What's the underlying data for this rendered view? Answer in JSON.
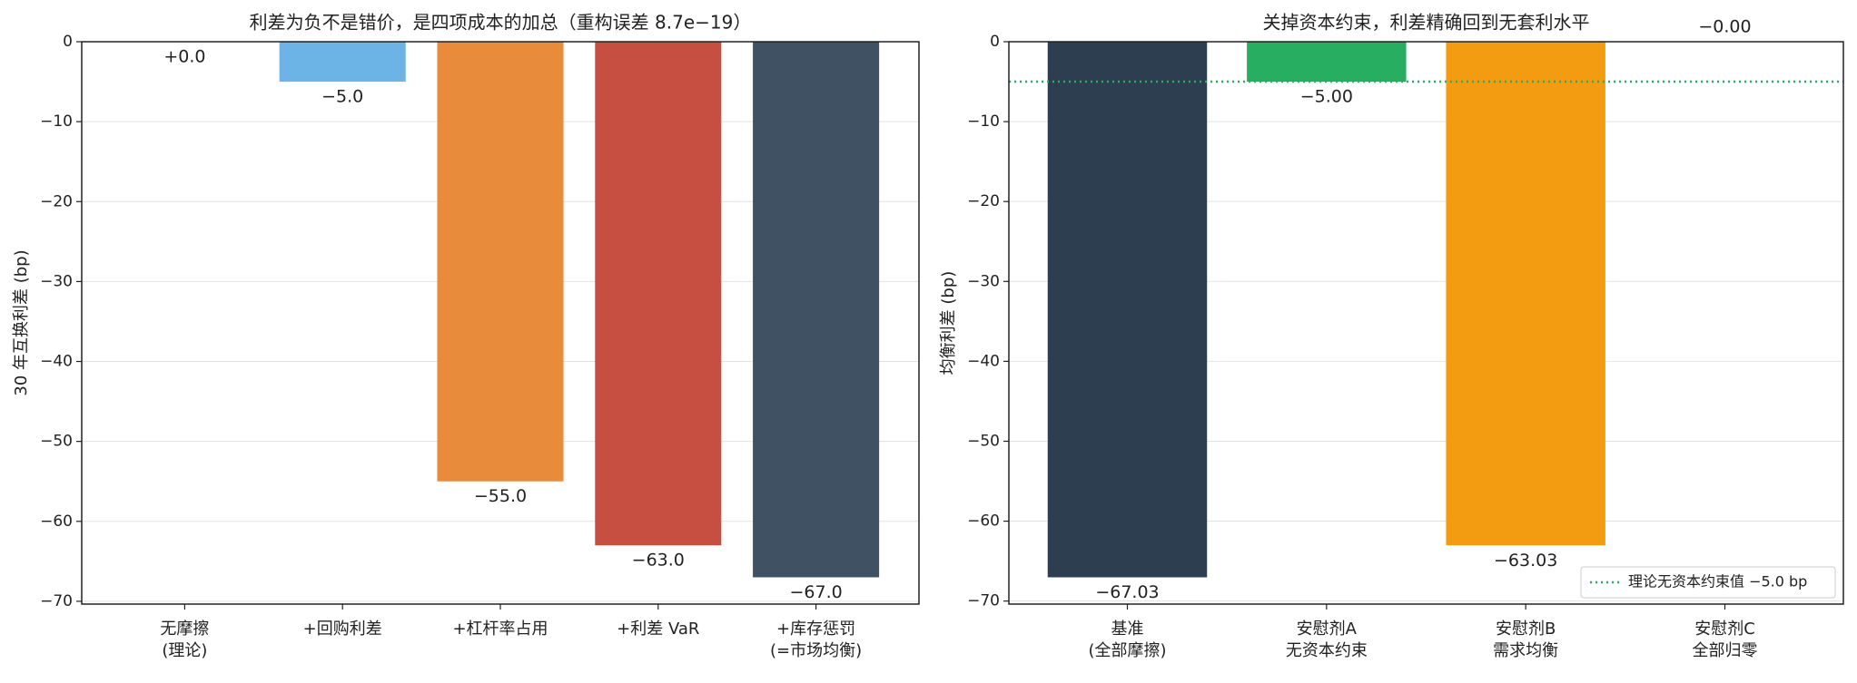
{
  "chart_data": [
    {
      "type": "bar",
      "title": "利差为负不是错价，是四项成本的加总（重构误差 8.7e−19）",
      "ylabel": "30 年互换利差 (bp)",
      "categories": [
        "无摩擦\n(理论)",
        "+回购利差",
        "+杠杆率占用",
        "+利差 VaR",
        "+库存惩罚\n(=市场均衡)"
      ],
      "values": [
        0,
        -5,
        -55,
        -63,
        -67
      ],
      "value_labels": [
        "+0.0",
        "−5.0",
        "−55.0",
        "−63.0",
        "−67.0"
      ],
      "colors": [
        "#95a5a6",
        "#6cb4e6",
        "#e88b3a",
        "#c64f42",
        "#415164"
      ],
      "ylim": [
        -70.35,
        0
      ],
      "yticks": [
        0,
        {
          "value": -10,
          "label": "−10"
        },
        {
          "value": -20,
          "label": "−20"
        },
        {
          "value": -30,
          "label": "−30"
        },
        {
          "value": -40,
          "label": "−40"
        },
        {
          "value": -50,
          "label": "−50"
        },
        {
          "value": -60,
          "label": "−60"
        },
        {
          "value": -70,
          "label": "−70"
        }
      ],
      "grid": true
    },
    {
      "type": "bar",
      "title": "关掉资本约束，利差精确回到无套利水平",
      "ylabel": "均衡利差 (bp)",
      "categories": [
        "基准\n(全部摩擦)",
        "安慰剂A\n无资本约束",
        "安慰剂B\n需求均衡",
        "安慰剂C\n全部归零"
      ],
      "values": [
        -67.03,
        -5.0,
        -63.03,
        -0.0
      ],
      "value_labels": [
        "−67.03",
        "−5.00",
        "−63.03",
        "−0.00"
      ],
      "colors": [
        "#2c3e50",
        "#27ae60",
        "#f39c12",
        "#95a5a6"
      ],
      "ylim": [
        -70.38,
        0
      ],
      "yticks": [
        0,
        {
          "value": -10,
          "label": "−10"
        },
        {
          "value": -20,
          "label": "−20"
        },
        {
          "value": -30,
          "label": "−30"
        },
        {
          "value": -40,
          "label": "−40"
        },
        {
          "value": -50,
          "label": "−50"
        },
        {
          "value": -60,
          "label": "−60"
        },
        {
          "value": -70,
          "label": "−70"
        }
      ],
      "grid": true,
      "hline": {
        "value": -5,
        "color": "#27ae60",
        "label": "理论无资本约束值 −5.0 bp"
      },
      "legend": "lower right"
    }
  ]
}
